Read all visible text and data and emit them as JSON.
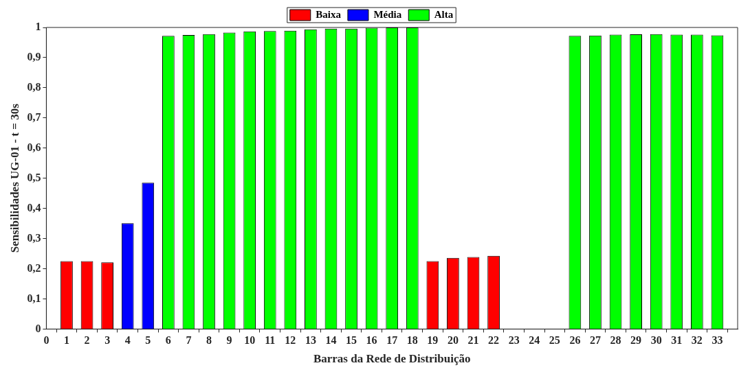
{
  "chart_data": {
    "type": "bar",
    "xlabel": "Barras da Rede de Distribuição",
    "ylabel": "Sensibilidades UG-01 - t = 30s",
    "x": [
      1,
      2,
      3,
      4,
      5,
      6,
      7,
      8,
      9,
      10,
      11,
      12,
      13,
      14,
      15,
      16,
      17,
      18,
      19,
      20,
      21,
      22,
      23,
      24,
      25,
      26,
      27,
      28,
      29,
      30,
      31,
      32,
      33
    ],
    "series": [
      {
        "name": "Baixa",
        "color": "#ff0000",
        "values": [
          0.225,
          0.225,
          0.221,
          null,
          null,
          null,
          null,
          null,
          null,
          null,
          null,
          null,
          null,
          null,
          null,
          null,
          null,
          null,
          0.225,
          0.236,
          0.239,
          0.243,
          null,
          null,
          null,
          null,
          null,
          null,
          null,
          null,
          null,
          null,
          null
        ]
      },
      {
        "name": "Média",
        "color": "#0000ff",
        "values": [
          null,
          null,
          null,
          0.351,
          0.485,
          null,
          null,
          null,
          null,
          null,
          null,
          null,
          null,
          null,
          null,
          null,
          null,
          null,
          null,
          null,
          null,
          null,
          null,
          null,
          null,
          null,
          null,
          null,
          null,
          null,
          null,
          null,
          null
        ]
      },
      {
        "name": "Alta",
        "color": "#00ff00",
        "values": [
          null,
          null,
          null,
          null,
          null,
          0.972,
          0.975,
          0.978,
          0.983,
          0.987,
          0.988,
          0.989,
          0.994,
          0.996,
          0.996,
          0.999,
          1.0,
          1.0,
          null,
          null,
          null,
          null,
          null,
          null,
          null,
          0.972,
          0.973,
          0.976,
          0.977,
          0.978,
          0.976,
          0.976,
          0.974
        ]
      }
    ],
    "xlim": [
      0,
      34
    ],
    "xticks": [
      0,
      1,
      2,
      3,
      4,
      5,
      6,
      7,
      8,
      9,
      10,
      11,
      12,
      13,
      14,
      15,
      16,
      17,
      18,
      19,
      20,
      21,
      22,
      23,
      24,
      25,
      26,
      27,
      28,
      29,
      30,
      31,
      32,
      33
    ],
    "ylim": [
      0,
      1
    ],
    "yticks": [
      0,
      {
        "value": 0.1,
        "label": "0,1"
      },
      {
        "value": 0.2,
        "label": "0,2"
      },
      {
        "value": 0.3,
        "label": "0,3"
      },
      {
        "value": 0.4,
        "label": "0,4"
      },
      {
        "value": 0.5,
        "label": "0,5"
      },
      {
        "value": 0.6,
        "label": "0,6"
      },
      {
        "value": 0.7,
        "label": "0,7"
      },
      {
        "value": 0.8,
        "label": "0,8"
      },
      {
        "value": 0.9,
        "label": "0,9"
      },
      1
    ],
    "grid": false,
    "legend": "top"
  }
}
